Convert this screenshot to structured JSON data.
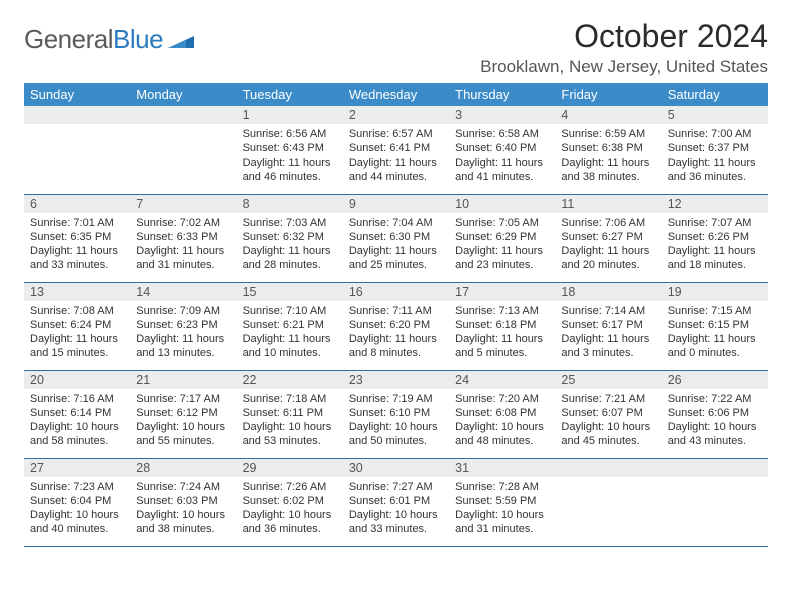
{
  "logo": {
    "word1": "General",
    "word2": "Blue"
  },
  "month_title": "October 2024",
  "location": "Brooklawn, New Jersey, United States",
  "colors": {
    "header_bg": "#3b8bc9",
    "daynum_bg": "#ececec",
    "row_border": "#2f6fa3",
    "logo_gray": "#5b5b5b",
    "logo_blue": "#2a7bbf"
  },
  "weekdays": [
    "Sunday",
    "Monday",
    "Tuesday",
    "Wednesday",
    "Thursday",
    "Friday",
    "Saturday"
  ],
  "weeks": [
    [
      null,
      null,
      {
        "n": "1",
        "sunrise": "Sunrise: 6:56 AM",
        "sunset": "Sunset: 6:43 PM",
        "day": "Daylight: 11 hours and 46 minutes."
      },
      {
        "n": "2",
        "sunrise": "Sunrise: 6:57 AM",
        "sunset": "Sunset: 6:41 PM",
        "day": "Daylight: 11 hours and 44 minutes."
      },
      {
        "n": "3",
        "sunrise": "Sunrise: 6:58 AM",
        "sunset": "Sunset: 6:40 PM",
        "day": "Daylight: 11 hours and 41 minutes."
      },
      {
        "n": "4",
        "sunrise": "Sunrise: 6:59 AM",
        "sunset": "Sunset: 6:38 PM",
        "day": "Daylight: 11 hours and 38 minutes."
      },
      {
        "n": "5",
        "sunrise": "Sunrise: 7:00 AM",
        "sunset": "Sunset: 6:37 PM",
        "day": "Daylight: 11 hours and 36 minutes."
      }
    ],
    [
      {
        "n": "6",
        "sunrise": "Sunrise: 7:01 AM",
        "sunset": "Sunset: 6:35 PM",
        "day": "Daylight: 11 hours and 33 minutes."
      },
      {
        "n": "7",
        "sunrise": "Sunrise: 7:02 AM",
        "sunset": "Sunset: 6:33 PM",
        "day": "Daylight: 11 hours and 31 minutes."
      },
      {
        "n": "8",
        "sunrise": "Sunrise: 7:03 AM",
        "sunset": "Sunset: 6:32 PM",
        "day": "Daylight: 11 hours and 28 minutes."
      },
      {
        "n": "9",
        "sunrise": "Sunrise: 7:04 AM",
        "sunset": "Sunset: 6:30 PM",
        "day": "Daylight: 11 hours and 25 minutes."
      },
      {
        "n": "10",
        "sunrise": "Sunrise: 7:05 AM",
        "sunset": "Sunset: 6:29 PM",
        "day": "Daylight: 11 hours and 23 minutes."
      },
      {
        "n": "11",
        "sunrise": "Sunrise: 7:06 AM",
        "sunset": "Sunset: 6:27 PM",
        "day": "Daylight: 11 hours and 20 minutes."
      },
      {
        "n": "12",
        "sunrise": "Sunrise: 7:07 AM",
        "sunset": "Sunset: 6:26 PM",
        "day": "Daylight: 11 hours and 18 minutes."
      }
    ],
    [
      {
        "n": "13",
        "sunrise": "Sunrise: 7:08 AM",
        "sunset": "Sunset: 6:24 PM",
        "day": "Daylight: 11 hours and 15 minutes."
      },
      {
        "n": "14",
        "sunrise": "Sunrise: 7:09 AM",
        "sunset": "Sunset: 6:23 PM",
        "day": "Daylight: 11 hours and 13 minutes."
      },
      {
        "n": "15",
        "sunrise": "Sunrise: 7:10 AM",
        "sunset": "Sunset: 6:21 PM",
        "day": "Daylight: 11 hours and 10 minutes."
      },
      {
        "n": "16",
        "sunrise": "Sunrise: 7:11 AM",
        "sunset": "Sunset: 6:20 PM",
        "day": "Daylight: 11 hours and 8 minutes."
      },
      {
        "n": "17",
        "sunrise": "Sunrise: 7:13 AM",
        "sunset": "Sunset: 6:18 PM",
        "day": "Daylight: 11 hours and 5 minutes."
      },
      {
        "n": "18",
        "sunrise": "Sunrise: 7:14 AM",
        "sunset": "Sunset: 6:17 PM",
        "day": "Daylight: 11 hours and 3 minutes."
      },
      {
        "n": "19",
        "sunrise": "Sunrise: 7:15 AM",
        "sunset": "Sunset: 6:15 PM",
        "day": "Daylight: 11 hours and 0 minutes."
      }
    ],
    [
      {
        "n": "20",
        "sunrise": "Sunrise: 7:16 AM",
        "sunset": "Sunset: 6:14 PM",
        "day": "Daylight: 10 hours and 58 minutes."
      },
      {
        "n": "21",
        "sunrise": "Sunrise: 7:17 AM",
        "sunset": "Sunset: 6:12 PM",
        "day": "Daylight: 10 hours and 55 minutes."
      },
      {
        "n": "22",
        "sunrise": "Sunrise: 7:18 AM",
        "sunset": "Sunset: 6:11 PM",
        "day": "Daylight: 10 hours and 53 minutes."
      },
      {
        "n": "23",
        "sunrise": "Sunrise: 7:19 AM",
        "sunset": "Sunset: 6:10 PM",
        "day": "Daylight: 10 hours and 50 minutes."
      },
      {
        "n": "24",
        "sunrise": "Sunrise: 7:20 AM",
        "sunset": "Sunset: 6:08 PM",
        "day": "Daylight: 10 hours and 48 minutes."
      },
      {
        "n": "25",
        "sunrise": "Sunrise: 7:21 AM",
        "sunset": "Sunset: 6:07 PM",
        "day": "Daylight: 10 hours and 45 minutes."
      },
      {
        "n": "26",
        "sunrise": "Sunrise: 7:22 AM",
        "sunset": "Sunset: 6:06 PM",
        "day": "Daylight: 10 hours and 43 minutes."
      }
    ],
    [
      {
        "n": "27",
        "sunrise": "Sunrise: 7:23 AM",
        "sunset": "Sunset: 6:04 PM",
        "day": "Daylight: 10 hours and 40 minutes."
      },
      {
        "n": "28",
        "sunrise": "Sunrise: 7:24 AM",
        "sunset": "Sunset: 6:03 PM",
        "day": "Daylight: 10 hours and 38 minutes."
      },
      {
        "n": "29",
        "sunrise": "Sunrise: 7:26 AM",
        "sunset": "Sunset: 6:02 PM",
        "day": "Daylight: 10 hours and 36 minutes."
      },
      {
        "n": "30",
        "sunrise": "Sunrise: 7:27 AM",
        "sunset": "Sunset: 6:01 PM",
        "day": "Daylight: 10 hours and 33 minutes."
      },
      {
        "n": "31",
        "sunrise": "Sunrise: 7:28 AM",
        "sunset": "Sunset: 5:59 PM",
        "day": "Daylight: 10 hours and 31 minutes."
      },
      null,
      null
    ]
  ]
}
